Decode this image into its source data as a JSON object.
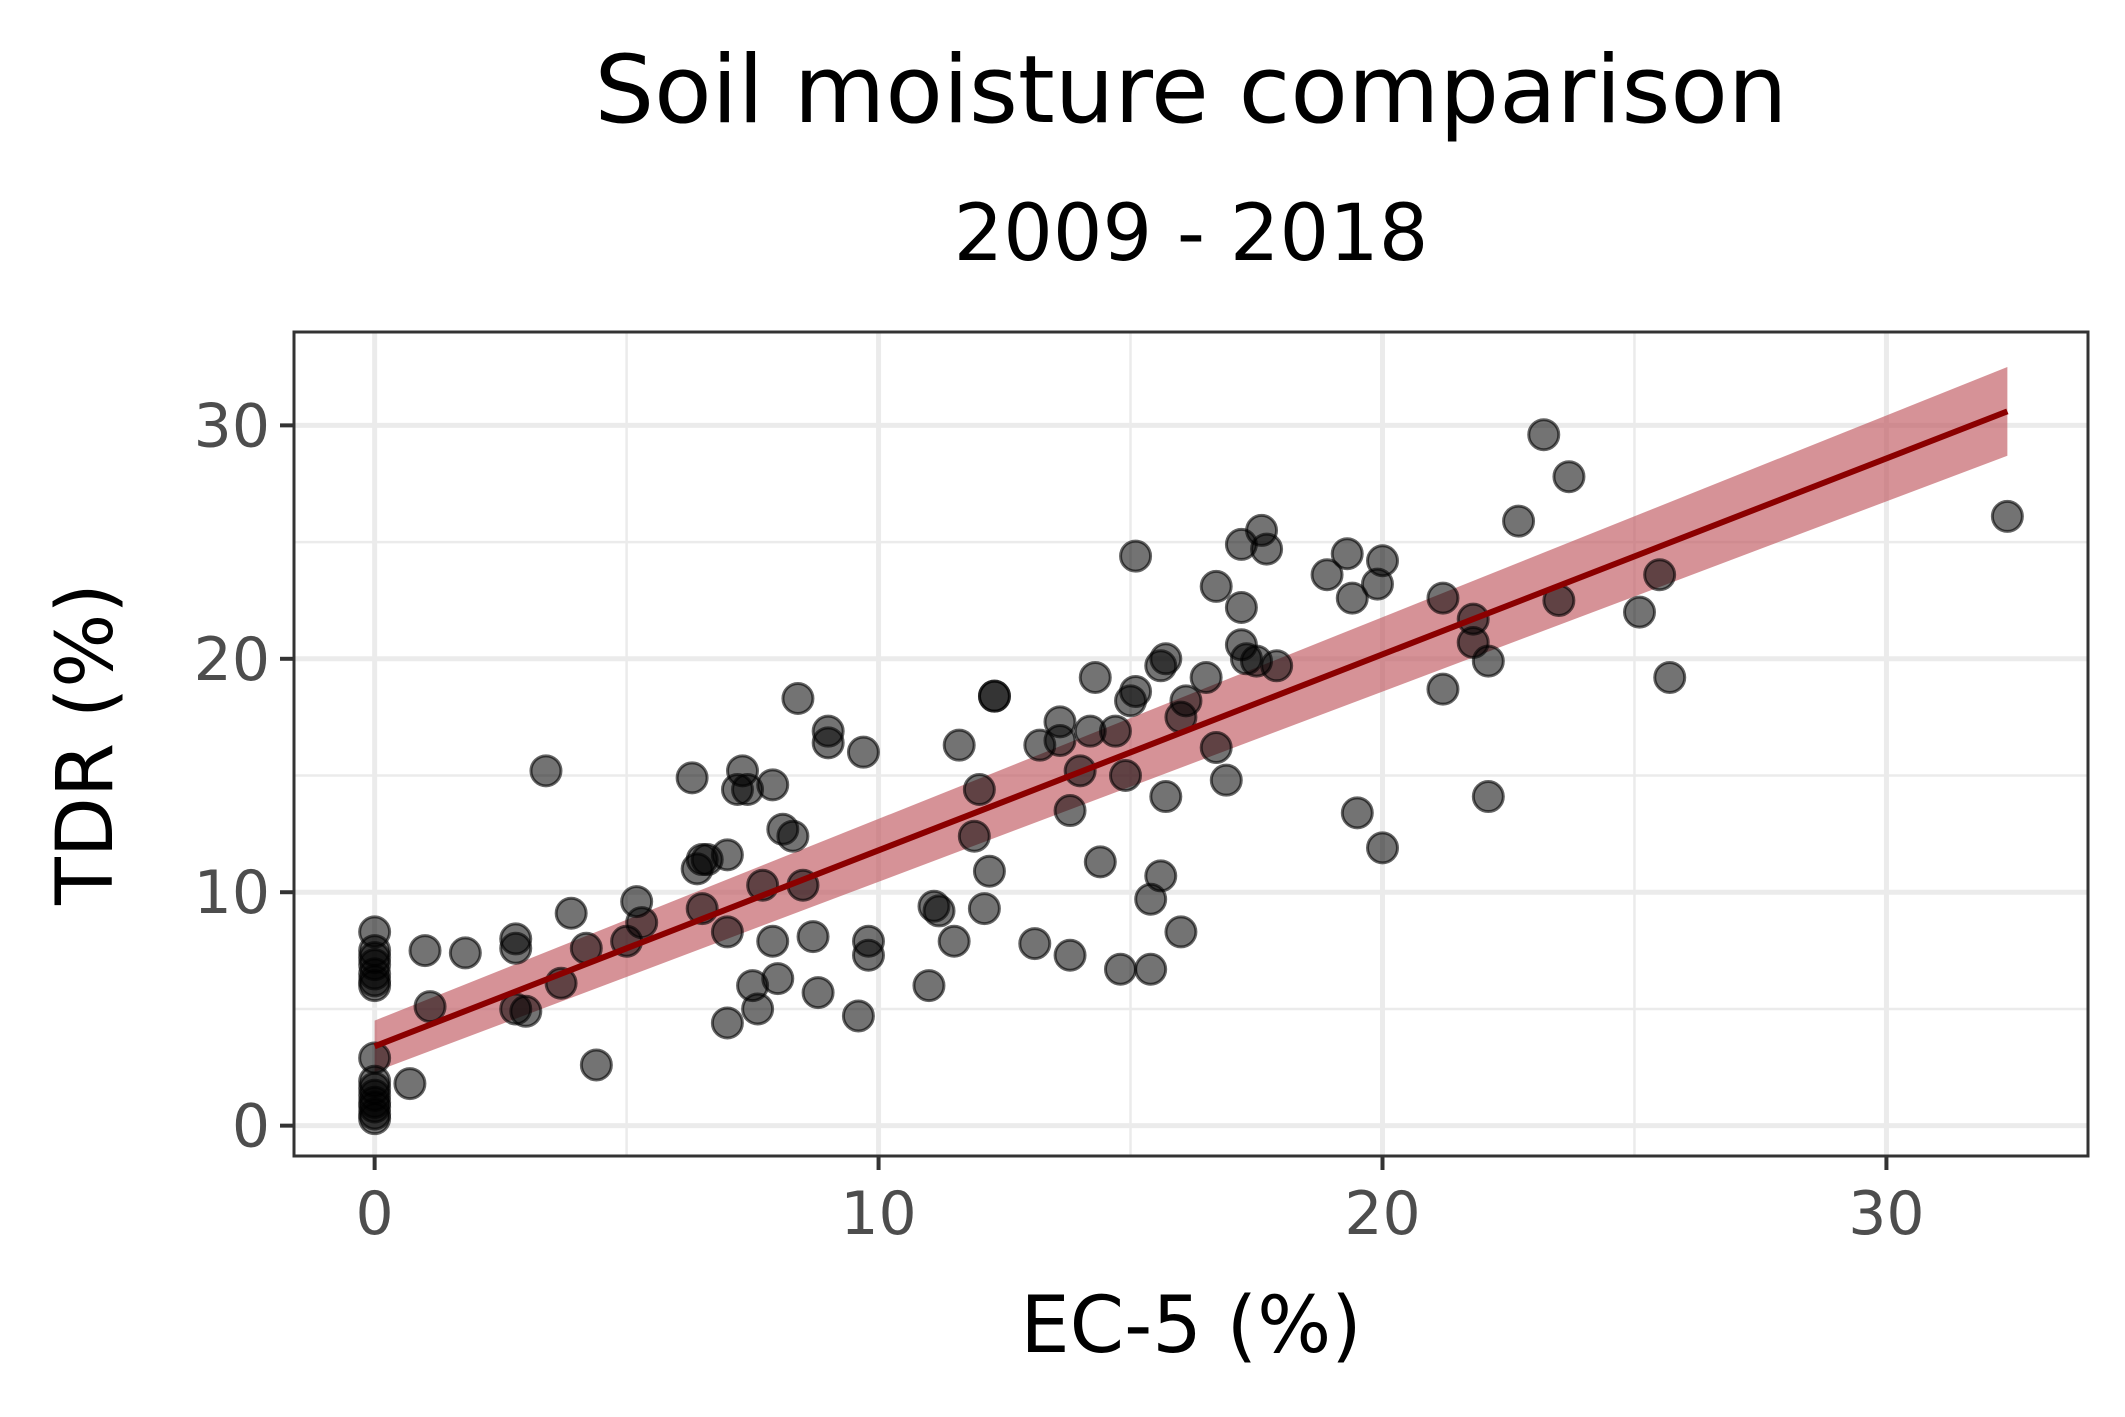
{
  "chart_data": {
    "type": "scatter",
    "title": "Soil moisture comparison",
    "subtitle": "2009 - 2018",
    "xlabel": "EC-5 (%)",
    "ylabel": "TDR (%)",
    "xlim": [
      -1.6,
      34
    ],
    "ylim": [
      -1.3,
      34
    ],
    "x_ticks": [
      0,
      10,
      20,
      30
    ],
    "y_ticks": [
      0,
      10,
      20,
      30
    ],
    "x_minor": [
      5,
      15,
      25
    ],
    "y_minor": [
      5,
      15,
      25
    ],
    "grid": true,
    "colors": {
      "points": "#000000",
      "fit_line": "#8b0000",
      "ribbon": "#c0575f"
    },
    "points": [
      [
        0,
        8.3
      ],
      [
        0,
        7.5
      ],
      [
        0,
        7.2
      ],
      [
        0,
        6.9
      ],
      [
        0,
        6.5
      ],
      [
        0,
        6.2
      ],
      [
        0,
        6.0
      ],
      [
        0,
        2.9
      ],
      [
        0,
        1.9
      ],
      [
        0,
        1.6
      ],
      [
        0,
        1.3
      ],
      [
        0,
        1.0
      ],
      [
        0,
        0.8
      ],
      [
        0,
        0.5
      ],
      [
        0,
        0.3
      ],
      [
        0.7,
        1.8
      ],
      [
        1.0,
        7.5
      ],
      [
        1.1,
        5.1
      ],
      [
        1.8,
        7.4
      ],
      [
        2.8,
        7.6
      ],
      [
        2.8,
        8.0
      ],
      [
        2.8,
        5.0
      ],
      [
        3.0,
        4.9
      ],
      [
        3.4,
        15.2
      ],
      [
        3.7,
        6.1
      ],
      [
        3.9,
        9.1
      ],
      [
        4.2,
        7.6
      ],
      [
        4.4,
        2.6
      ],
      [
        5.0,
        7.9
      ],
      [
        5.2,
        9.6
      ],
      [
        5.3,
        8.7
      ],
      [
        6.3,
        14.9
      ],
      [
        6.4,
        11.0
      ],
      [
        6.5,
        11.4
      ],
      [
        6.6,
        11.4
      ],
      [
        6.5,
        9.3
      ],
      [
        7.0,
        11.6
      ],
      [
        7.0,
        8.3
      ],
      [
        7.0,
        4.4
      ],
      [
        7.3,
        15.2
      ],
      [
        7.2,
        14.4
      ],
      [
        7.4,
        14.4
      ],
      [
        7.5,
        6.0
      ],
      [
        7.6,
        5.0
      ],
      [
        7.7,
        10.3
      ],
      [
        7.9,
        14.6
      ],
      [
        7.9,
        7.9
      ],
      [
        8.0,
        6.3
      ],
      [
        8.1,
        12.7
      ],
      [
        8.3,
        12.4
      ],
      [
        8.4,
        18.3
      ],
      [
        8.5,
        10.3
      ],
      [
        8.7,
        8.1
      ],
      [
        8.8,
        5.7
      ],
      [
        9.0,
        16.9
      ],
      [
        9.0,
        16.4
      ],
      [
        9.6,
        4.7
      ],
      [
        9.7,
        16.0
      ],
      [
        9.8,
        7.9
      ],
      [
        9.8,
        7.3
      ],
      [
        11.0,
        6.0
      ],
      [
        11.1,
        9.4
      ],
      [
        11.2,
        9.2
      ],
      [
        11.5,
        7.9
      ],
      [
        11.6,
        16.3
      ],
      [
        11.9,
        12.4
      ],
      [
        12.0,
        14.4
      ],
      [
        12.1,
        9.3
      ],
      [
        12.2,
        10.9
      ],
      [
        12.3,
        18.4
      ],
      [
        12.3,
        18.4
      ],
      [
        13.1,
        7.8
      ],
      [
        13.2,
        16.3
      ],
      [
        13.6,
        17.3
      ],
      [
        13.6,
        16.5
      ],
      [
        13.8,
        13.5
      ],
      [
        13.8,
        7.3
      ],
      [
        14.0,
        15.2
      ],
      [
        14.2,
        16.9
      ],
      [
        14.3,
        19.2
      ],
      [
        14.4,
        11.3
      ],
      [
        14.7,
        16.9
      ],
      [
        14.8,
        6.7
      ],
      [
        14.9,
        15.0
      ],
      [
        15.0,
        18.2
      ],
      [
        15.1,
        18.6
      ],
      [
        15.1,
        24.4
      ],
      [
        15.4,
        6.7
      ],
      [
        15.4,
        9.7
      ],
      [
        15.6,
        10.7
      ],
      [
        15.6,
        19.7
      ],
      [
        15.7,
        20.0
      ],
      [
        15.7,
        14.1
      ],
      [
        16.0,
        17.5
      ],
      [
        16.1,
        18.2
      ],
      [
        16.0,
        8.3
      ],
      [
        16.5,
        19.2
      ],
      [
        16.7,
        23.1
      ],
      [
        16.7,
        16.2
      ],
      [
        16.9,
        14.8
      ],
      [
        17.2,
        22.2
      ],
      [
        17.2,
        24.9
      ],
      [
        17.2,
        20.6
      ],
      [
        17.3,
        20.0
      ],
      [
        17.5,
        19.9
      ],
      [
        17.6,
        25.5
      ],
      [
        17.7,
        24.7
      ],
      [
        17.9,
        19.7
      ],
      [
        18.9,
        23.6
      ],
      [
        19.3,
        24.5
      ],
      [
        19.4,
        22.6
      ],
      [
        19.5,
        13.4
      ],
      [
        19.9,
        23.2
      ],
      [
        20.0,
        24.2
      ],
      [
        20.0,
        11.9
      ],
      [
        21.2,
        18.7
      ],
      [
        21.2,
        22.6
      ],
      [
        21.8,
        21.7
      ],
      [
        21.8,
        20.7
      ],
      [
        22.1,
        19.9
      ],
      [
        22.1,
        14.1
      ],
      [
        22.7,
        25.9
      ],
      [
        23.2,
        29.6
      ],
      [
        23.5,
        22.5
      ],
      [
        23.7,
        27.8
      ],
      [
        25.1,
        22.0
      ],
      [
        25.5,
        23.6
      ],
      [
        25.7,
        19.2
      ],
      [
        32.4,
        26.1
      ]
    ],
    "fit": {
      "x": [
        0,
        32.4
      ],
      "y": [
        3.4,
        30.6
      ],
      "ci_lower": [
        2.3,
        28.7
      ],
      "ci_upper": [
        4.5,
        32.5
      ]
    }
  }
}
